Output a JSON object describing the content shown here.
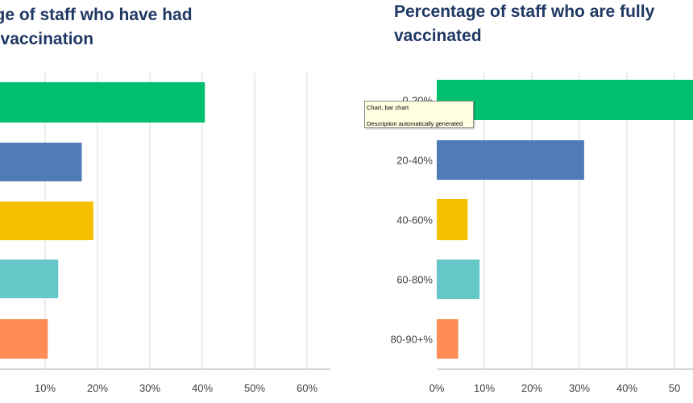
{
  "colors": [
    "#00c06f",
    "#4f7bb7",
    "#f5c000",
    "#66c7c9",
    "#ff8b55"
  ],
  "grid_color": "#d9d9d9",
  "axis_color": "#bfbfbf",
  "tooltip": {
    "line1": "Chart, bar chart",
    "line2": "Description automatically generated"
  },
  "chart_data": [
    {
      "type": "bar",
      "orientation": "horizontal",
      "title": "ntage of staff who have had\nirst vaccination",
      "categories": [
        "",
        "",
        "",
        "",
        ""
      ],
      "values": [
        40.5,
        17,
        19.2,
        12.5,
        10.5
      ],
      "xticks": [
        "%",
        "10%",
        "20%",
        "30%",
        "40%",
        "50%",
        "60%"
      ],
      "xlim": [
        0,
        65
      ],
      "grid": true
    },
    {
      "type": "bar",
      "orientation": "horizontal",
      "title": "Percentage of staff who are fully\nvaccinated",
      "categories": [
        "0-20%",
        "20-40%",
        "40-60%",
        "60-80%",
        "80-90+%"
      ],
      "values": [
        56,
        31,
        6.5,
        9,
        4.5
      ],
      "xticks": [
        "0%",
        "10%",
        "20%",
        "30%",
        "40%",
        "50"
      ],
      "xlim": [
        0,
        56
      ],
      "grid": true
    }
  ]
}
